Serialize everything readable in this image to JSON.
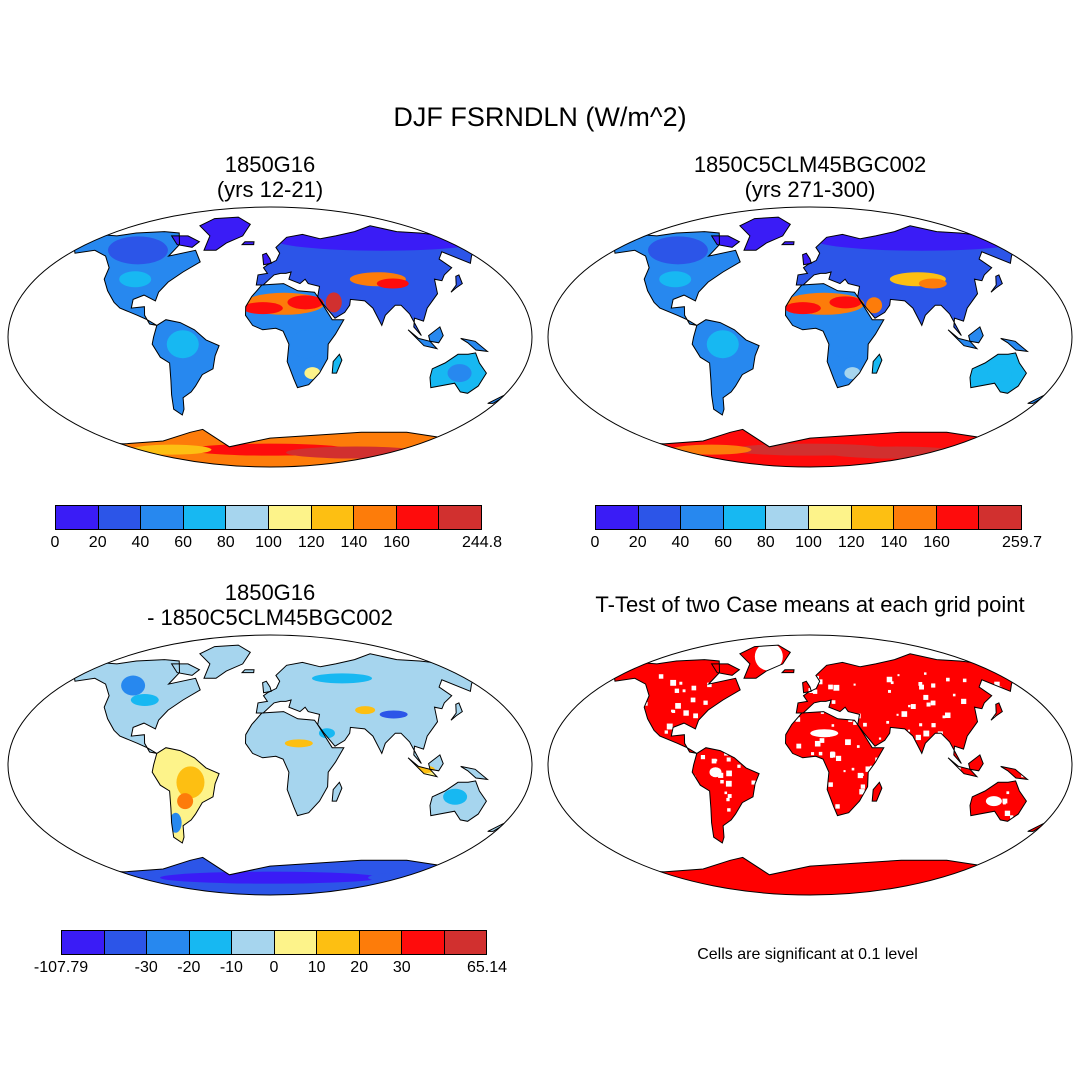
{
  "title": "DJF FSRNDLN (W/m^2)",
  "panels": [
    {
      "id": "case1",
      "title_line1": "1850G16",
      "title_line2": "(yrs 12-21)",
      "colorbar": {
        "colors": [
          "#3a1cf6",
          "#2c55e8",
          "#2788ef",
          "#17b8f2",
          "#a6d5ee",
          "#fdf38a",
          "#fdbf12",
          "#fd7c0a",
          "#fe0c0c",
          "#d1302f"
        ],
        "labels": [
          "0",
          "20",
          "40",
          "60",
          "80",
          "100",
          "120",
          "140",
          "160",
          "244.8"
        ]
      }
    },
    {
      "id": "case2",
      "title_line1": "1850C5CLM45BGC002",
      "title_line2": "(yrs 271-300)",
      "colorbar": {
        "colors": [
          "#3a1cf6",
          "#2c55e8",
          "#2788ef",
          "#17b8f2",
          "#a6d5ee",
          "#fdf38a",
          "#fdbf12",
          "#fd7c0a",
          "#fe0c0c",
          "#d1302f"
        ],
        "labels": [
          "0",
          "20",
          "40",
          "60",
          "80",
          "100",
          "120",
          "140",
          "160",
          "259.7"
        ]
      }
    },
    {
      "id": "difference",
      "title_line1": "1850G16",
      "title_line2": "- 1850C5CLM45BGC002",
      "colorbar": {
        "colors": [
          "#3a1cf6",
          "#2c55e8",
          "#2788ef",
          "#17b8f2",
          "#a6d5ee",
          "#fdf38a",
          "#fdbf12",
          "#fd7c0a",
          "#fe0c0c",
          "#d1302f"
        ],
        "labels": [
          "-107.79",
          "-30",
          "-20",
          "-10",
          "0",
          "10",
          "20",
          "30",
          "65.14"
        ]
      }
    },
    {
      "id": "ttest",
      "title_line1": "T-Test of two Case means at each grid point",
      "note": "Cells are significant at 0.1 level",
      "significant_color": "#ff0000"
    }
  ]
}
